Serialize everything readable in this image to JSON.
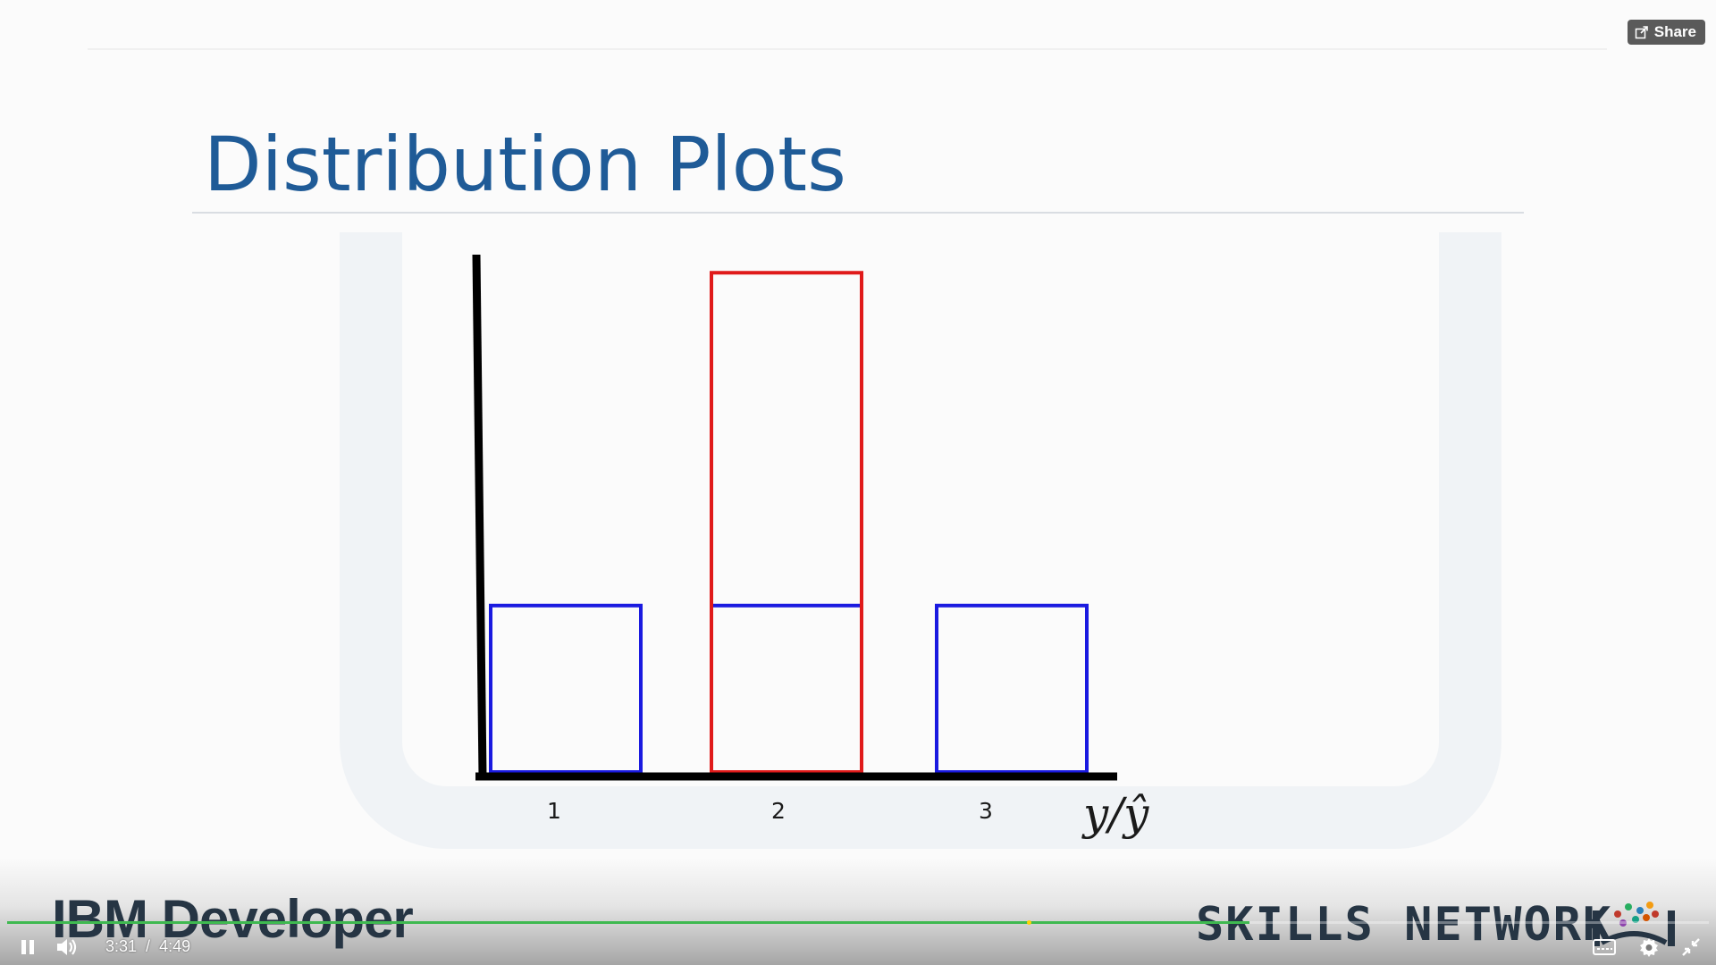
{
  "share": {
    "label": "Share"
  },
  "slide": {
    "title": "Distribution Plots"
  },
  "chart_data": {
    "type": "bar",
    "categories": [
      "1",
      "2",
      "3"
    ],
    "series": [
      {
        "color": "#1a1ae0",
        "values": [
          1,
          1,
          1
        ]
      },
      {
        "color": "#e01a1a",
        "values": [
          0,
          3,
          0
        ]
      }
    ],
    "xlabel": "y/ŷ",
    "ylabel": "",
    "ylim": [
      0,
      3.2
    ],
    "grid": false,
    "legend": "none"
  },
  "branding": {
    "left": "IBM Developer",
    "right": "SKILLS NETWORK"
  },
  "player": {
    "current_time": "3:31",
    "separator": "/",
    "duration": "4:49",
    "progress": 0.73,
    "colors": {
      "played": "#3fb950",
      "knob": "#ffd400"
    }
  },
  "icons": {
    "share": "share-icon",
    "pause": "pause-icon",
    "volume": "volume-icon",
    "captions": "captions-icon",
    "settings": "gear-icon",
    "fullscreen": "exit-fullscreen-icon"
  }
}
